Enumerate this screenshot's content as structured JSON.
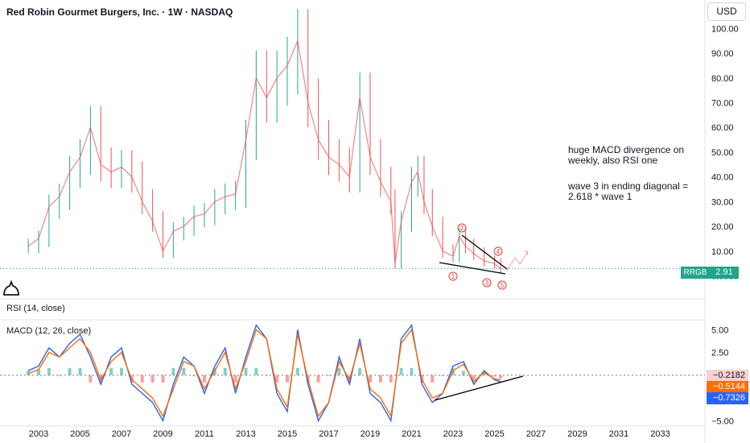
{
  "header": {
    "title": "Red Robin Gourmet Burgers, Inc. · 1W · NASDAQ",
    "currency": "USD"
  },
  "price_badge": {
    "symbol": "RRGB",
    "value": "2.91"
  },
  "rsi": {
    "label": "RSI (14, close)"
  },
  "macd": {
    "label": "MACD (12, 26, close)",
    "badges": [
      "−0.2182",
      "−0.5144",
      "−0.7326"
    ]
  },
  "annotations": {
    "note1": "huge MACD divergence on weekly, also RSI one",
    "note2": "wave 3 in ending diagonal = 2.618 * wave 1",
    "waves": [
      "1",
      "2",
      "3",
      "4",
      "5"
    ]
  },
  "colors": {
    "up": "#26a69a",
    "down": "#ef5350",
    "macd_line": "#2962ff",
    "signal_line": "#ff6d00",
    "trend_line": "#000000",
    "wave_label": "#e53935"
  },
  "chart_data": [
    {
      "type": "line",
      "title": "Red Robin Gourmet Burgers, Inc. · 1W · NASDAQ",
      "x_ticks": [
        "2003",
        "2005",
        "2007",
        "2009",
        "2011",
        "2013",
        "2015",
        "2017",
        "2019",
        "2021",
        "2023",
        "2025",
        "2027",
        "2029",
        "2031",
        "2033"
      ],
      "y_ticks": [
        "100.00",
        "90.00",
        "80.00",
        "70.00",
        "60.00",
        "50.00",
        "40.00",
        "30.00",
        "20.00",
        "10.00",
        "0.0000"
      ],
      "ylim": [
        -7,
        105
      ],
      "series": [
        {
          "name": "RRGB",
          "x": [
            2002.5,
            2003.0,
            2003.5,
            2004.0,
            2004.5,
            2005.0,
            2005.5,
            2006.0,
            2006.5,
            2007.0,
            2007.5,
            2008.0,
            2008.5,
            2009.0,
            2009.5,
            2010.0,
            2010.5,
            2011.0,
            2011.5,
            2012.0,
            2012.5,
            2013.0,
            2013.5,
            2014.0,
            2014.5,
            2015.0,
            2015.5,
            2016.0,
            2016.5,
            2017.0,
            2017.5,
            2018.0,
            2018.5,
            2019.0,
            2019.5,
            2020.0,
            2020.2,
            2020.5,
            2021.0,
            2021.3,
            2021.6,
            2022.0,
            2022.5,
            2023.0,
            2023.3,
            2023.6,
            2024.0,
            2024.5,
            2025.0,
            2025.3
          ],
          "y": [
            12,
            15,
            28,
            32,
            42,
            48,
            60,
            45,
            42,
            44,
            40,
            30,
            22,
            10,
            18,
            20,
            24,
            25,
            30,
            32,
            33,
            55,
            80,
            72,
            80,
            85,
            95,
            70,
            55,
            48,
            45,
            40,
            72,
            48,
            38,
            30,
            5,
            22,
            38,
            42,
            30,
            20,
            10,
            8,
            16,
            12,
            9,
            6,
            5,
            2.91
          ]
        }
      ],
      "current_price": 2.91
    },
    {
      "type": "bar",
      "title": "MACD (12, 26, close)",
      "y_ticks": [
        "5.00",
        "2.50",
        "−5.00"
      ],
      "ylim": [
        -5.5,
        6
      ],
      "x": [
        2002.5,
        2003.0,
        2003.5,
        2004.0,
        2004.5,
        2005.0,
        2005.5,
        2006.0,
        2006.5,
        2007.0,
        2007.5,
        2008.0,
        2008.5,
        2009.0,
        2009.5,
        2010.0,
        2010.5,
        2011.0,
        2011.5,
        2012.0,
        2012.5,
        2013.0,
        2013.5,
        2014.0,
        2014.5,
        2015.0,
        2015.5,
        2016.0,
        2016.5,
        2017.0,
        2017.5,
        2018.0,
        2018.5,
        2019.0,
        2019.5,
        2020.0,
        2020.5,
        2021.0,
        2021.5,
        2022.0,
        2022.5,
        2023.0,
        2023.5,
        2024.0,
        2024.5,
        2025.0,
        2025.3
      ],
      "series": [
        {
          "name": "MACD",
          "values": [
            0.5,
            1,
            3,
            2,
            3.5,
            4.5,
            2,
            -1,
            2,
            3,
            -1,
            -2,
            -3,
            -5,
            -1,
            2,
            1,
            -2,
            1,
            3,
            -2,
            2,
            5.5,
            4,
            -2,
            -4,
            5,
            -1,
            -5,
            -3,
            2,
            -1,
            4,
            -2,
            -3,
            -5,
            4,
            5.5,
            -1,
            -3,
            -2,
            1,
            1.5,
            -1,
            0.5,
            -0.5,
            -0.7326
          ]
        },
        {
          "name": "Signal",
          "values": [
            0.2,
            0.6,
            2.5,
            2,
            3,
            4,
            2.5,
            -0.5,
            1.5,
            2.5,
            -0.5,
            -1.5,
            -2.5,
            -4.5,
            -1.5,
            1.5,
            1,
            -1.5,
            0.5,
            2.5,
            -1.5,
            1.5,
            5,
            4,
            -1.5,
            -3.5,
            4.5,
            -0.5,
            -4.5,
            -3,
            1.5,
            -0.5,
            3.5,
            -1.5,
            -2.5,
            -4.5,
            3.5,
            5,
            -0.5,
            -2.5,
            -2,
            0.5,
            1.2,
            -0.7,
            0.3,
            -0.4,
            -0.5144
          ]
        }
      ],
      "current_values": [
        -0.2182,
        -0.5144,
        -0.7326
      ]
    }
  ]
}
